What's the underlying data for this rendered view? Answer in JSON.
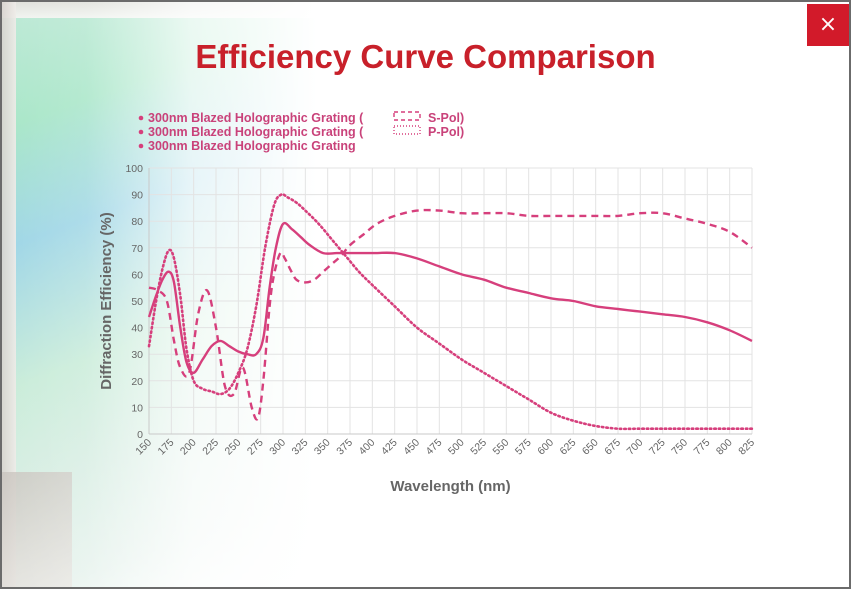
{
  "modal": {
    "title": "Efficiency Curve Comparison",
    "close_label": "×"
  },
  "colors": {
    "series": "#d63f7c",
    "title": "#c8202a",
    "close_bg": "#d21a2a"
  },
  "chart_data": {
    "type": "line",
    "title": "Efficiency Curve Comparison",
    "xlabel": "Wavelength (nm)",
    "ylabel": "Diffraction Efficiency (%)",
    "xlim": [
      150,
      825
    ],
    "ylim": [
      0,
      100
    ],
    "x_ticks": [
      "150",
      "175",
      "200",
      "225",
      "250",
      "275",
      "300",
      "325",
      "350",
      "375",
      "400",
      "425",
      "450",
      "475",
      "500",
      "525",
      "550",
      "575",
      "600",
      "625",
      "650",
      "675",
      "700",
      "725",
      "750",
      "775",
      "800",
      "825"
    ],
    "y_ticks": [
      "0",
      "10",
      "20",
      "30",
      "40",
      "50",
      "60",
      "70",
      "80",
      "90",
      "100"
    ],
    "grid": true,
    "legend_position": "top-left",
    "legend": [
      {
        "pre": "300nm Blazed Holographic Grating (",
        "post": "S-Pol)",
        "swatch": "dashed"
      },
      {
        "pre": "300nm Blazed Holographic Grating (",
        "post": "P-Pol)",
        "swatch": "dotted"
      },
      {
        "pre": "300nm Blazed Holographic Grating",
        "post": "",
        "swatch": "none"
      }
    ],
    "series": [
      {
        "style": "dashed",
        "x": [
          150,
          160,
          170,
          178,
          185,
          195,
          205,
          215,
          225,
          235,
          245,
          255,
          265,
          272,
          278,
          285,
          290,
          297,
          302,
          308,
          315,
          325,
          335,
          345,
          355,
          365,
          375,
          390,
          405,
          425,
          450,
          475,
          500,
          525,
          550,
          575,
          600,
          625,
          650,
          675,
          700,
          725,
          750,
          775,
          800,
          825
        ],
        "y": [
          55,
          54,
          50,
          35,
          25,
          23,
          45,
          54,
          40,
          18,
          15,
          25,
          10,
          6,
          20,
          48,
          60,
          68,
          66,
          62,
          58,
          57,
          58,
          61,
          64,
          67,
          71,
          75,
          79,
          82,
          84,
          84,
          83,
          83,
          83,
          82,
          82,
          82,
          82,
          82,
          83,
          83,
          81,
          79,
          76,
          70
        ]
      },
      {
        "style": "dotted",
        "x": [
          150,
          158,
          165,
          172,
          178,
          185,
          192,
          200,
          210,
          220,
          230,
          240,
          250,
          260,
          270,
          280,
          290,
          298,
          305,
          315,
          325,
          340,
          355,
          370,
          385,
          400,
          425,
          450,
          475,
          500,
          525,
          550,
          575,
          600,
          625,
          650,
          675,
          700,
          725,
          750,
          775,
          800,
          825
        ],
        "y": [
          33,
          50,
          62,
          69,
          66,
          52,
          32,
          20,
          17,
          16,
          15,
          17,
          23,
          32,
          48,
          70,
          86,
          90,
          89,
          87,
          84,
          79,
          73,
          67,
          61,
          56,
          48,
          40,
          34,
          28,
          23,
          18,
          13,
          8,
          5,
          3,
          2,
          2,
          2,
          2,
          2,
          2,
          2
        ]
      },
      {
        "style": "solid",
        "x": [
          150,
          158,
          165,
          172,
          178,
          185,
          192,
          200,
          210,
          220,
          230,
          240,
          250,
          260,
          270,
          278,
          285,
          292,
          300,
          310,
          320,
          330,
          345,
          360,
          375,
          400,
          425,
          450,
          475,
          500,
          525,
          550,
          575,
          600,
          625,
          650,
          675,
          700,
          725,
          750,
          775,
          800,
          825
        ],
        "y": [
          44,
          52,
          58,
          61,
          57,
          40,
          27,
          23,
          28,
          33,
          35,
          33,
          31,
          30,
          30,
          36,
          55,
          70,
          79,
          77,
          74,
          71,
          68,
          68,
          68,
          68,
          68,
          66,
          63,
          60,
          58,
          55,
          53,
          51,
          50,
          48,
          47,
          46,
          45,
          44,
          42,
          39,
          35
        ]
      }
    ]
  }
}
